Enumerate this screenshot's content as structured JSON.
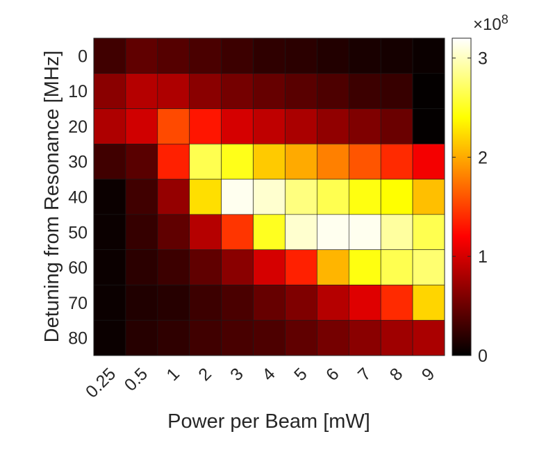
{
  "chart_data": {
    "type": "heatmap",
    "xlabel": "Power per Beam [mW]",
    "ylabel": "Detuning from Resonance [MHz]",
    "x_categories": [
      "0.25",
      "0.5",
      "1",
      "2",
      "3",
      "4",
      "5",
      "6",
      "7",
      "8",
      "9"
    ],
    "y_categories": [
      "0",
      "10",
      "20",
      "30",
      "40",
      "50",
      "60",
      "70",
      "80"
    ],
    "colormap": "hot",
    "colorbar": {
      "min": 0,
      "max": 3.2,
      "ticks": [
        0,
        1,
        2,
        3
      ],
      "tick_labels": [
        "0",
        "1",
        "2",
        "3"
      ],
      "exponent_label": "×10",
      "exponent_power": "8"
    },
    "values": [
      [
        0.3,
        0.45,
        0.4,
        0.35,
        0.28,
        0.22,
        0.2,
        0.16,
        0.12,
        0.1,
        0.05
      ],
      [
        0.65,
        0.85,
        0.82,
        0.65,
        0.55,
        0.48,
        0.42,
        0.36,
        0.28,
        0.26,
        0.02
      ],
      [
        0.82,
        0.98,
        1.55,
        1.3,
        1.0,
        0.9,
        0.8,
        0.68,
        0.6,
        0.5,
        0.02
      ],
      [
        0.3,
        0.42,
        1.35,
        2.65,
        2.48,
        2.15,
        2.0,
        1.8,
        1.6,
        1.4,
        1.15
      ],
      [
        0.05,
        0.3,
        0.7,
        2.25,
        3.15,
        3.05,
        2.8,
        2.65,
        2.45,
        2.4,
        2.1
      ],
      [
        0.05,
        0.25,
        0.45,
        0.85,
        1.45,
        2.5,
        3.05,
        3.15,
        3.15,
        2.9,
        2.65
      ],
      [
        0.05,
        0.2,
        0.28,
        0.45,
        0.65,
        1.0,
        1.35,
        2.05,
        2.45,
        2.65,
        2.75
      ],
      [
        0.05,
        0.15,
        0.18,
        0.28,
        0.35,
        0.48,
        0.6,
        0.85,
        1.05,
        1.4,
        2.2
      ],
      [
        0.05,
        0.18,
        0.22,
        0.3,
        0.34,
        0.36,
        0.45,
        0.55,
        0.65,
        0.75,
        0.8
      ]
    ]
  }
}
